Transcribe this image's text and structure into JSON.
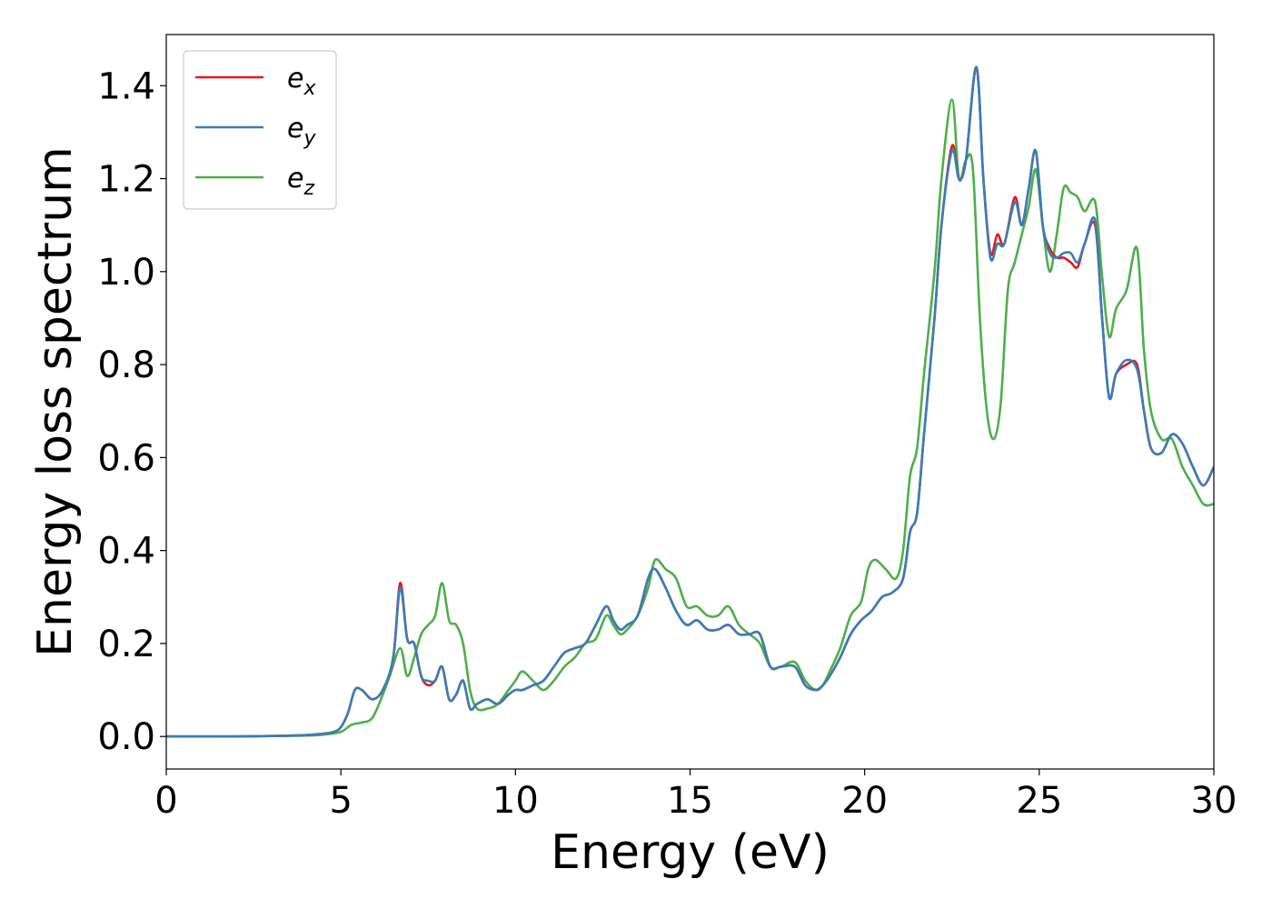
{
  "chart_data": {
    "type": "line",
    "xlabel": "Energy (eV)",
    "ylabel": "Energy loss spectrum",
    "xlim": [
      0,
      30
    ],
    "ylim": [
      -0.07,
      1.51
    ],
    "xticks": [
      "0",
      "5",
      "10",
      "15",
      "20",
      "25",
      "30"
    ],
    "yticks": [
      "0.0",
      "0.2",
      "0.4",
      "0.6",
      "0.8",
      "1.0",
      "1.2",
      "1.4"
    ],
    "grid": false,
    "legend_position": "top-left",
    "series": [
      {
        "name": "e_x",
        "label_base": "e",
        "label_sub": "x",
        "color": "#e41a1c",
        "x": [
          0,
          1,
          2,
          3,
          4,
          4.5,
          4.8,
          5.0,
          5.2,
          5.4,
          5.6,
          5.9,
          6.2,
          6.5,
          6.7,
          6.9,
          7.1,
          7.3,
          7.5,
          7.7,
          7.9,
          8.1,
          8.3,
          8.5,
          8.7,
          8.9,
          9.2,
          9.5,
          9.8,
          10.0,
          10.2,
          10.5,
          10.8,
          11.1,
          11.4,
          11.7,
          12.0,
          12.3,
          12.6,
          12.8,
          13.0,
          13.2,
          13.5,
          13.8,
          14.0,
          14.3,
          14.6,
          14.9,
          15.2,
          15.5,
          15.8,
          16.1,
          16.4,
          16.7,
          17.0,
          17.3,
          17.6,
          18.0,
          18.3,
          18.6,
          18.8,
          19.0,
          19.3,
          19.6,
          19.9,
          20.2,
          20.5,
          20.8,
          21.1,
          21.3,
          21.5,
          21.7,
          22.0,
          22.2,
          22.5,
          22.7,
          22.9,
          23.2,
          23.4,
          23.6,
          23.8,
          24.0,
          24.3,
          24.5,
          24.7,
          24.9,
          25.1,
          25.3,
          25.5,
          25.7,
          25.9,
          26.1,
          26.3,
          26.6,
          26.8,
          27.0,
          27.2,
          27.5,
          27.8,
          28.0,
          28.2,
          28.5,
          28.8,
          29.1,
          29.4,
          29.7,
          30.0
        ],
        "y": [
          0.0,
          0.0,
          0.0,
          0.001,
          0.003,
          0.006,
          0.01,
          0.02,
          0.05,
          0.1,
          0.1,
          0.08,
          0.1,
          0.17,
          0.33,
          0.21,
          0.2,
          0.13,
          0.11,
          0.12,
          0.15,
          0.08,
          0.09,
          0.12,
          0.06,
          0.07,
          0.08,
          0.07,
          0.09,
          0.1,
          0.1,
          0.11,
          0.12,
          0.15,
          0.18,
          0.19,
          0.2,
          0.24,
          0.28,
          0.25,
          0.23,
          0.24,
          0.26,
          0.34,
          0.36,
          0.32,
          0.27,
          0.24,
          0.25,
          0.23,
          0.23,
          0.24,
          0.22,
          0.22,
          0.22,
          0.15,
          0.15,
          0.15,
          0.11,
          0.1,
          0.11,
          0.13,
          0.17,
          0.22,
          0.25,
          0.27,
          0.3,
          0.31,
          0.34,
          0.44,
          0.48,
          0.65,
          0.9,
          1.1,
          1.27,
          1.2,
          1.24,
          1.44,
          1.2,
          1.04,
          1.08,
          1.06,
          1.16,
          1.1,
          1.18,
          1.26,
          1.1,
          1.05,
          1.03,
          1.03,
          1.02,
          1.01,
          1.06,
          1.1,
          0.9,
          0.73,
          0.78,
          0.8,
          0.8,
          0.7,
          0.62,
          0.61,
          0.65,
          0.63,
          0.58,
          0.54,
          0.58
        ]
      },
      {
        "name": "e_y",
        "label_base": "e",
        "label_sub": "y",
        "color": "#377eb8",
        "x": [
          0,
          1,
          2,
          3,
          4,
          4.5,
          4.8,
          5.0,
          5.2,
          5.4,
          5.6,
          5.9,
          6.2,
          6.5,
          6.7,
          6.9,
          7.1,
          7.3,
          7.5,
          7.7,
          7.9,
          8.1,
          8.3,
          8.5,
          8.7,
          8.9,
          9.2,
          9.5,
          9.8,
          10.0,
          10.2,
          10.5,
          10.8,
          11.1,
          11.4,
          11.7,
          12.0,
          12.3,
          12.6,
          12.8,
          13.0,
          13.2,
          13.5,
          13.8,
          14.0,
          14.3,
          14.6,
          14.9,
          15.2,
          15.5,
          15.8,
          16.1,
          16.4,
          16.7,
          17.0,
          17.3,
          17.6,
          18.0,
          18.3,
          18.6,
          18.8,
          19.0,
          19.3,
          19.6,
          19.9,
          20.2,
          20.5,
          20.8,
          21.1,
          21.3,
          21.5,
          21.7,
          22.0,
          22.2,
          22.5,
          22.7,
          22.9,
          23.2,
          23.4,
          23.6,
          23.8,
          24.0,
          24.3,
          24.5,
          24.7,
          24.9,
          25.1,
          25.3,
          25.5,
          25.7,
          25.9,
          26.1,
          26.3,
          26.6,
          26.8,
          27.0,
          27.2,
          27.5,
          27.8,
          28.0,
          28.2,
          28.5,
          28.8,
          29.1,
          29.4,
          29.7,
          30.0
        ],
        "y": [
          0.0,
          0.0,
          0.0,
          0.001,
          0.003,
          0.006,
          0.01,
          0.02,
          0.05,
          0.1,
          0.1,
          0.08,
          0.1,
          0.17,
          0.32,
          0.21,
          0.2,
          0.13,
          0.12,
          0.12,
          0.15,
          0.08,
          0.09,
          0.12,
          0.06,
          0.07,
          0.08,
          0.07,
          0.09,
          0.1,
          0.1,
          0.11,
          0.12,
          0.15,
          0.18,
          0.19,
          0.2,
          0.24,
          0.28,
          0.25,
          0.23,
          0.24,
          0.26,
          0.34,
          0.36,
          0.32,
          0.27,
          0.24,
          0.25,
          0.23,
          0.23,
          0.24,
          0.22,
          0.22,
          0.22,
          0.15,
          0.15,
          0.15,
          0.11,
          0.1,
          0.11,
          0.13,
          0.17,
          0.22,
          0.25,
          0.27,
          0.3,
          0.31,
          0.34,
          0.44,
          0.48,
          0.65,
          0.9,
          1.1,
          1.26,
          1.2,
          1.24,
          1.44,
          1.2,
          1.03,
          1.06,
          1.06,
          1.15,
          1.1,
          1.18,
          1.26,
          1.1,
          1.04,
          1.03,
          1.04,
          1.04,
          1.02,
          1.06,
          1.11,
          0.9,
          0.73,
          0.78,
          0.81,
          0.79,
          0.7,
          0.62,
          0.61,
          0.65,
          0.63,
          0.58,
          0.54,
          0.58
        ]
      },
      {
        "name": "e_z",
        "label_base": "e",
        "label_sub": "z",
        "color": "#4daf4a",
        "x": [
          0,
          1,
          2,
          3,
          4,
          4.5,
          5.0,
          5.3,
          5.6,
          5.9,
          6.2,
          6.4,
          6.7,
          6.9,
          7.1,
          7.3,
          7.5,
          7.7,
          7.9,
          8.1,
          8.3,
          8.5,
          8.7,
          8.9,
          9.2,
          9.5,
          9.8,
          10.0,
          10.2,
          10.5,
          10.8,
          11.1,
          11.4,
          11.7,
          12.0,
          12.3,
          12.6,
          12.8,
          13.0,
          13.2,
          13.5,
          13.8,
          14.0,
          14.3,
          14.6,
          14.9,
          15.2,
          15.5,
          15.8,
          16.1,
          16.4,
          16.7,
          17.0,
          17.3,
          17.6,
          18.0,
          18.3,
          18.6,
          18.8,
          19.0,
          19.3,
          19.6,
          19.9,
          20.1,
          20.3,
          20.6,
          20.9,
          21.1,
          21.3,
          21.5,
          21.7,
          22.0,
          22.2,
          22.5,
          22.7,
          22.9,
          23.1,
          23.3,
          23.5,
          23.7,
          23.9,
          24.1,
          24.3,
          24.5,
          24.7,
          24.9,
          25.1,
          25.3,
          25.5,
          25.7,
          25.9,
          26.1,
          26.3,
          26.6,
          26.8,
          27.0,
          27.2,
          27.5,
          27.8,
          28.0,
          28.2,
          28.5,
          28.8,
          29.1,
          29.4,
          29.7,
          30.0
        ],
        "y": [
          0.0,
          0.0,
          0.0,
          0.001,
          0.002,
          0.004,
          0.01,
          0.025,
          0.03,
          0.04,
          0.09,
          0.13,
          0.19,
          0.13,
          0.17,
          0.22,
          0.24,
          0.26,
          0.33,
          0.25,
          0.24,
          0.2,
          0.1,
          0.06,
          0.06,
          0.07,
          0.1,
          0.12,
          0.14,
          0.12,
          0.1,
          0.12,
          0.15,
          0.17,
          0.2,
          0.21,
          0.26,
          0.24,
          0.22,
          0.23,
          0.26,
          0.32,
          0.38,
          0.36,
          0.34,
          0.28,
          0.28,
          0.26,
          0.26,
          0.28,
          0.24,
          0.22,
          0.2,
          0.15,
          0.15,
          0.16,
          0.12,
          0.1,
          0.11,
          0.14,
          0.19,
          0.26,
          0.29,
          0.36,
          0.38,
          0.36,
          0.34,
          0.4,
          0.56,
          0.62,
          0.78,
          1.0,
          1.2,
          1.37,
          1.2,
          1.24,
          1.22,
          0.9,
          0.7,
          0.64,
          0.72,
          0.96,
          1.02,
          1.08,
          1.14,
          1.22,
          1.1,
          1.0,
          1.08,
          1.18,
          1.17,
          1.16,
          1.13,
          1.15,
          0.99,
          0.86,
          0.92,
          0.96,
          1.05,
          0.83,
          0.7,
          0.64,
          0.64,
          0.58,
          0.54,
          0.5,
          0.5
        ]
      }
    ]
  }
}
